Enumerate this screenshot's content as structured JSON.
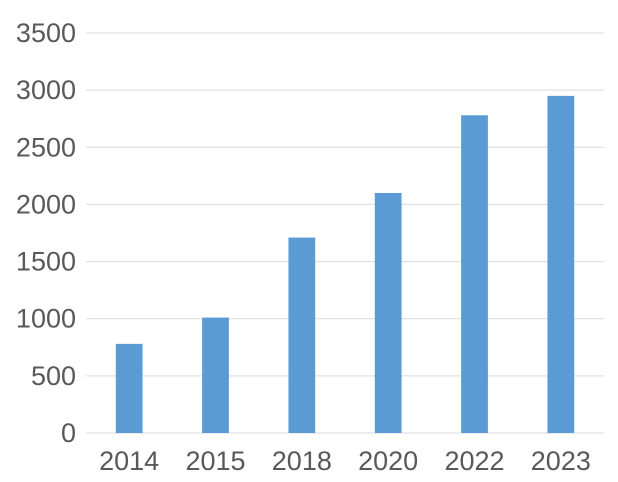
{
  "chart_data": {
    "type": "bar",
    "title": "",
    "xlabel": "",
    "ylabel": "",
    "categories": [
      "2014",
      "2015",
      "2018",
      "2020",
      "2022",
      "2023"
    ],
    "values": [
      780,
      1010,
      1710,
      2100,
      2780,
      2950
    ],
    "ylim": [
      0,
      3500
    ],
    "yticks": [
      "0",
      "500",
      "1000",
      "1500",
      "2000",
      "2500",
      "3000",
      "3500"
    ],
    "grid": true,
    "legend": "none",
    "bar_color": "#5b9bd5",
    "gridline_color": "#d9d9d9",
    "label_color": "#595959"
  }
}
